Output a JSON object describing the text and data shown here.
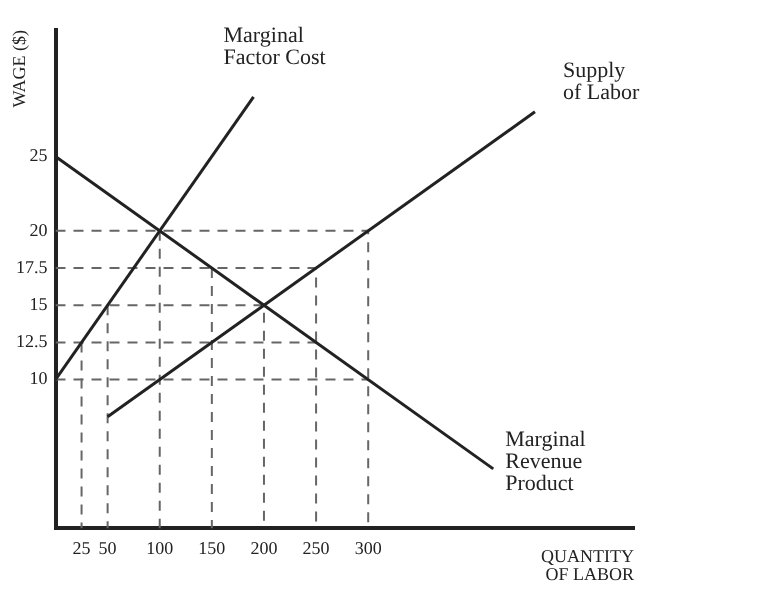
{
  "chart_data": {
    "type": "line",
    "xlabel": "QUANTITY\nOF LABOR",
    "ylabel": "WAGE ($)",
    "xlim": [
      0,
      555
    ],
    "ylim": [
      0,
      33.5
    ],
    "xticks": [
      25,
      50,
      100,
      150,
      200,
      250,
      300
    ],
    "yticks": [
      10,
      12.5,
      15,
      17.5,
      20,
      25
    ],
    "grid": false,
    "legend": false,
    "marker": "none",
    "series": [
      {
        "name": "Marginal\nFactor Cost",
        "color": "#222222",
        "line_style": "solid",
        "x": [
          0,
          190
        ],
        "values": [
          10,
          29
        ]
      },
      {
        "name": "Supply\nof Labor",
        "color": "#222222",
        "line_style": "solid",
        "x": [
          50,
          460
        ],
        "values": [
          7.5,
          28
        ]
      },
      {
        "name": "Marginal\nRevenue\nProduct",
        "color": "#222222",
        "line_style": "solid",
        "x": [
          0,
          420
        ],
        "values": [
          25,
          4
        ]
      },
      {
        "color": "#666666",
        "line_style": "dashed",
        "x": [
          0,
          300,
          300
        ],
        "values": [
          20,
          20,
          0
        ]
      },
      {
        "color": "#666666",
        "line_style": "dashed",
        "x": [
          0,
          250,
          250
        ],
        "values": [
          17.5,
          17.5,
          0
        ]
      },
      {
        "color": "#666666",
        "line_style": "dashed",
        "x": [
          0,
          200,
          200
        ],
        "values": [
          15,
          15,
          0
        ]
      },
      {
        "color": "#666666",
        "line_style": "dashed",
        "x": [
          0,
          250
        ],
        "values": [
          12.5,
          12.5
        ]
      },
      {
        "color": "#666666",
        "line_style": "dashed",
        "x": [
          0,
          300
        ],
        "values": [
          10,
          10
        ]
      },
      {
        "color": "#666666",
        "line_style": "dashed",
        "x": [
          25,
          25
        ],
        "values": [
          12.5,
          0
        ]
      },
      {
        "color": "#666666",
        "line_style": "dashed",
        "x": [
          50,
          50
        ],
        "values": [
          15,
          0
        ]
      },
      {
        "color": "#666666",
        "line_style": "dashed",
        "x": [
          100,
          100
        ],
        "values": [
          20,
          0
        ]
      },
      {
        "color": "#666666",
        "line_style": "dashed",
        "x": [
          150,
          150
        ],
        "values": [
          17.5,
          0
        ]
      }
    ]
  }
}
